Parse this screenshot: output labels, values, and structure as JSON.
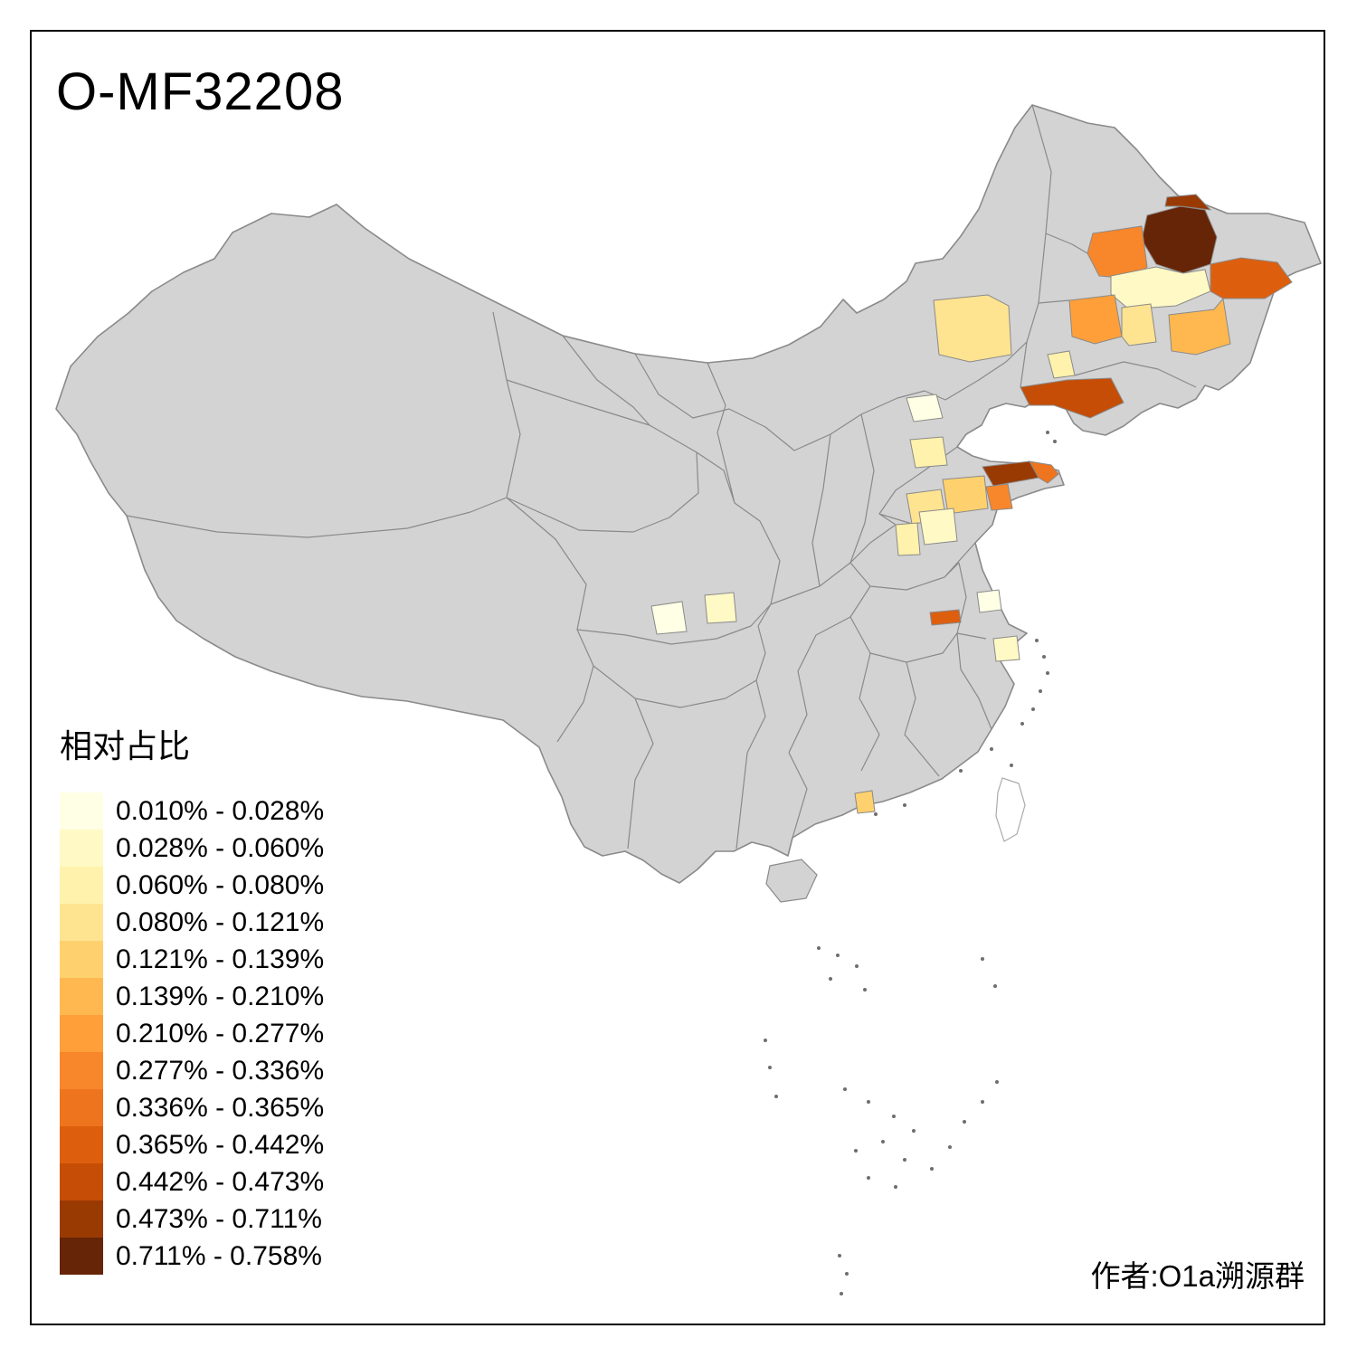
{
  "header": {
    "title": "O-MF32208"
  },
  "footer": {
    "author": "作者:O1a溯源群"
  },
  "map": {
    "base_fill": "#D3D3D3",
    "boundary_color": "#8A8A8A",
    "taiwan_fill": "#FFFFFF",
    "island_color": "#6E6E6E",
    "background": "#FFFFFF"
  },
  "chart_data": {
    "type": "choropleth",
    "title": "O-MF32208",
    "legend_title": "相对占比",
    "geography": "China, prefecture-level divisions; gray = no data",
    "unit": "%",
    "classes": [
      {
        "label": "0.010% - 0.028%",
        "min": 0.01,
        "max": 0.028,
        "color": "#FFFFE5"
      },
      {
        "label": "0.028% - 0.060%",
        "min": 0.028,
        "max": 0.06,
        "color": "#FFF9C6"
      },
      {
        "label": "0.060% - 0.080%",
        "min": 0.06,
        "max": 0.08,
        "color": "#FFF2AC"
      },
      {
        "label": "0.080% - 0.121%",
        "min": 0.08,
        "max": 0.121,
        "color": "#FEE391"
      },
      {
        "label": "0.121% - 0.139%",
        "min": 0.121,
        "max": 0.139,
        "color": "#FED16E"
      },
      {
        "label": "0.139% - 0.210%",
        "min": 0.139,
        "max": 0.21,
        "color": "#FEB84F"
      },
      {
        "label": "0.210% - 0.277%",
        "min": 0.21,
        "max": 0.277,
        "color": "#FE9F3A"
      },
      {
        "label": "0.277% - 0.336%",
        "min": 0.277,
        "max": 0.336,
        "color": "#F8862B"
      },
      {
        "label": "0.336% - 0.365%",
        "min": 0.336,
        "max": 0.365,
        "color": "#EE741D"
      },
      {
        "label": "0.365% - 0.442%",
        "min": 0.365,
        "max": 0.442,
        "color": "#DD5F0E"
      },
      {
        "label": "0.442% - 0.473%",
        "min": 0.442,
        "max": 0.473,
        "color": "#C54D05"
      },
      {
        "label": "0.473% - 0.711%",
        "min": 0.473,
        "max": 0.711,
        "color": "#9A3A03"
      },
      {
        "label": "0.711% - 0.758%",
        "min": 0.711,
        "max": 0.758,
        "color": "#662506"
      }
    ],
    "regions": [
      {
        "id": "r1",
        "area": "heilongjiang-central",
        "class_index": 13
      },
      {
        "id": "r2",
        "area": "heilongjiang-north",
        "class_index": 12
      },
      {
        "id": "r3",
        "area": "heilongjiang-west",
        "class_index": 8
      },
      {
        "id": "r4",
        "area": "heilongjiang-south",
        "class_index": 2
      },
      {
        "id": "r5",
        "area": "heilongjiang-east",
        "class_index": 10
      },
      {
        "id": "r6",
        "area": "jilin-west",
        "class_index": 7
      },
      {
        "id": "r7",
        "area": "jilin-central",
        "class_index": 4
      },
      {
        "id": "r8",
        "area": "jilin-east",
        "class_index": 6
      },
      {
        "id": "r9",
        "area": "liaoning-north",
        "class_index": 3
      },
      {
        "id": "r10",
        "area": "liaoning-coast",
        "class_index": 11
      },
      {
        "id": "r11",
        "area": "inner-mongolia-east",
        "class_index": 4
      },
      {
        "id": "r12",
        "area": "beijing",
        "class_index": 1
      },
      {
        "id": "r13",
        "area": "hebei-central",
        "class_index": 3
      },
      {
        "id": "r14",
        "area": "shandong-yantai",
        "class_index": 12
      },
      {
        "id": "r15",
        "area": "shandong-weihai",
        "class_index": 9
      },
      {
        "id": "r16",
        "area": "shandong-qingdao",
        "class_index": 8
      },
      {
        "id": "r17",
        "area": "shandong-central",
        "class_index": 5
      },
      {
        "id": "r18",
        "area": "shandong-northwest",
        "class_index": 4
      },
      {
        "id": "r19",
        "area": "shandong-southwest",
        "class_index": 2
      },
      {
        "id": "r20",
        "area": "shandong-west",
        "class_index": 3
      },
      {
        "id": "r21",
        "area": "sichuan-chengdu",
        "class_index": 1
      },
      {
        "id": "r22",
        "area": "sichuan-east",
        "class_index": 2
      },
      {
        "id": "r23",
        "area": "hubei-east",
        "class_index": 10
      },
      {
        "id": "r24",
        "area": "anhui-central",
        "class_index": 1
      },
      {
        "id": "r25",
        "area": "zhejiang-north",
        "class_index": 2
      },
      {
        "id": "r26",
        "area": "guangdong-north",
        "class_index": 5
      }
    ]
  }
}
